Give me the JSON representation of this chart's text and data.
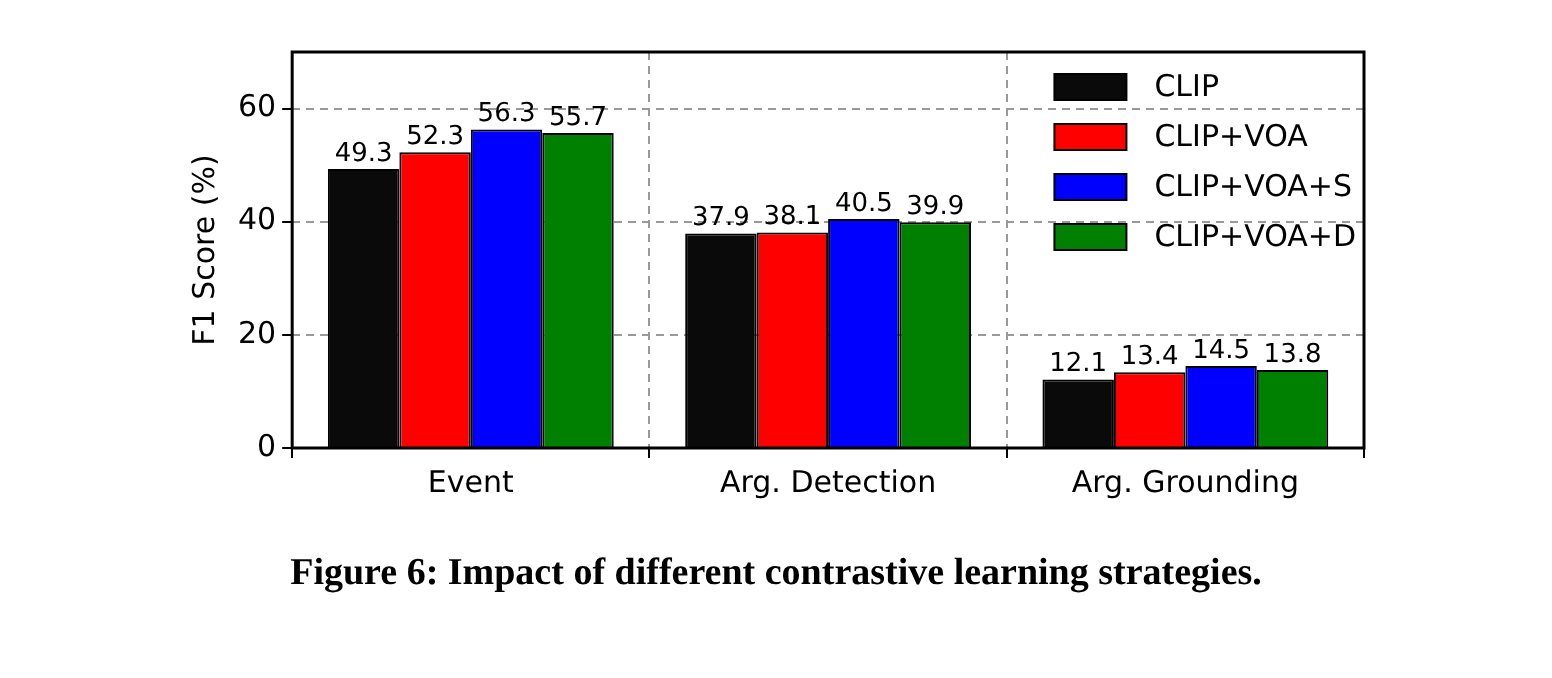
{
  "chart_data": {
    "type": "bar",
    "categories": [
      "Event",
      "Arg. Detection",
      "Arg. Grounding"
    ],
    "series": [
      {
        "name": "CLIP",
        "color": "#0a0a0a",
        "values": [
          49.3,
          37.9,
          12.1
        ]
      },
      {
        "name": "CLIP+VOA",
        "color": "#ff0000",
        "values": [
          52.3,
          38.1,
          13.4
        ]
      },
      {
        "name": "CLIP+VOA+S",
        "color": "#0000ff",
        "values": [
          56.3,
          40.5,
          14.5
        ]
      },
      {
        "name": "CLIP+VOA+D",
        "color": "#008000",
        "values": [
          55.7,
          39.9,
          13.8
        ]
      }
    ],
    "ylabel": "F1 Score (%)",
    "ylim": [
      0,
      70
    ],
    "yticks": [
      0,
      20,
      40,
      60
    ],
    "grid": true,
    "legend": "top right",
    "data_labels": true,
    "annotations": [
      "Figure 6: Impact of different contrastive learning strategies."
    ]
  }
}
